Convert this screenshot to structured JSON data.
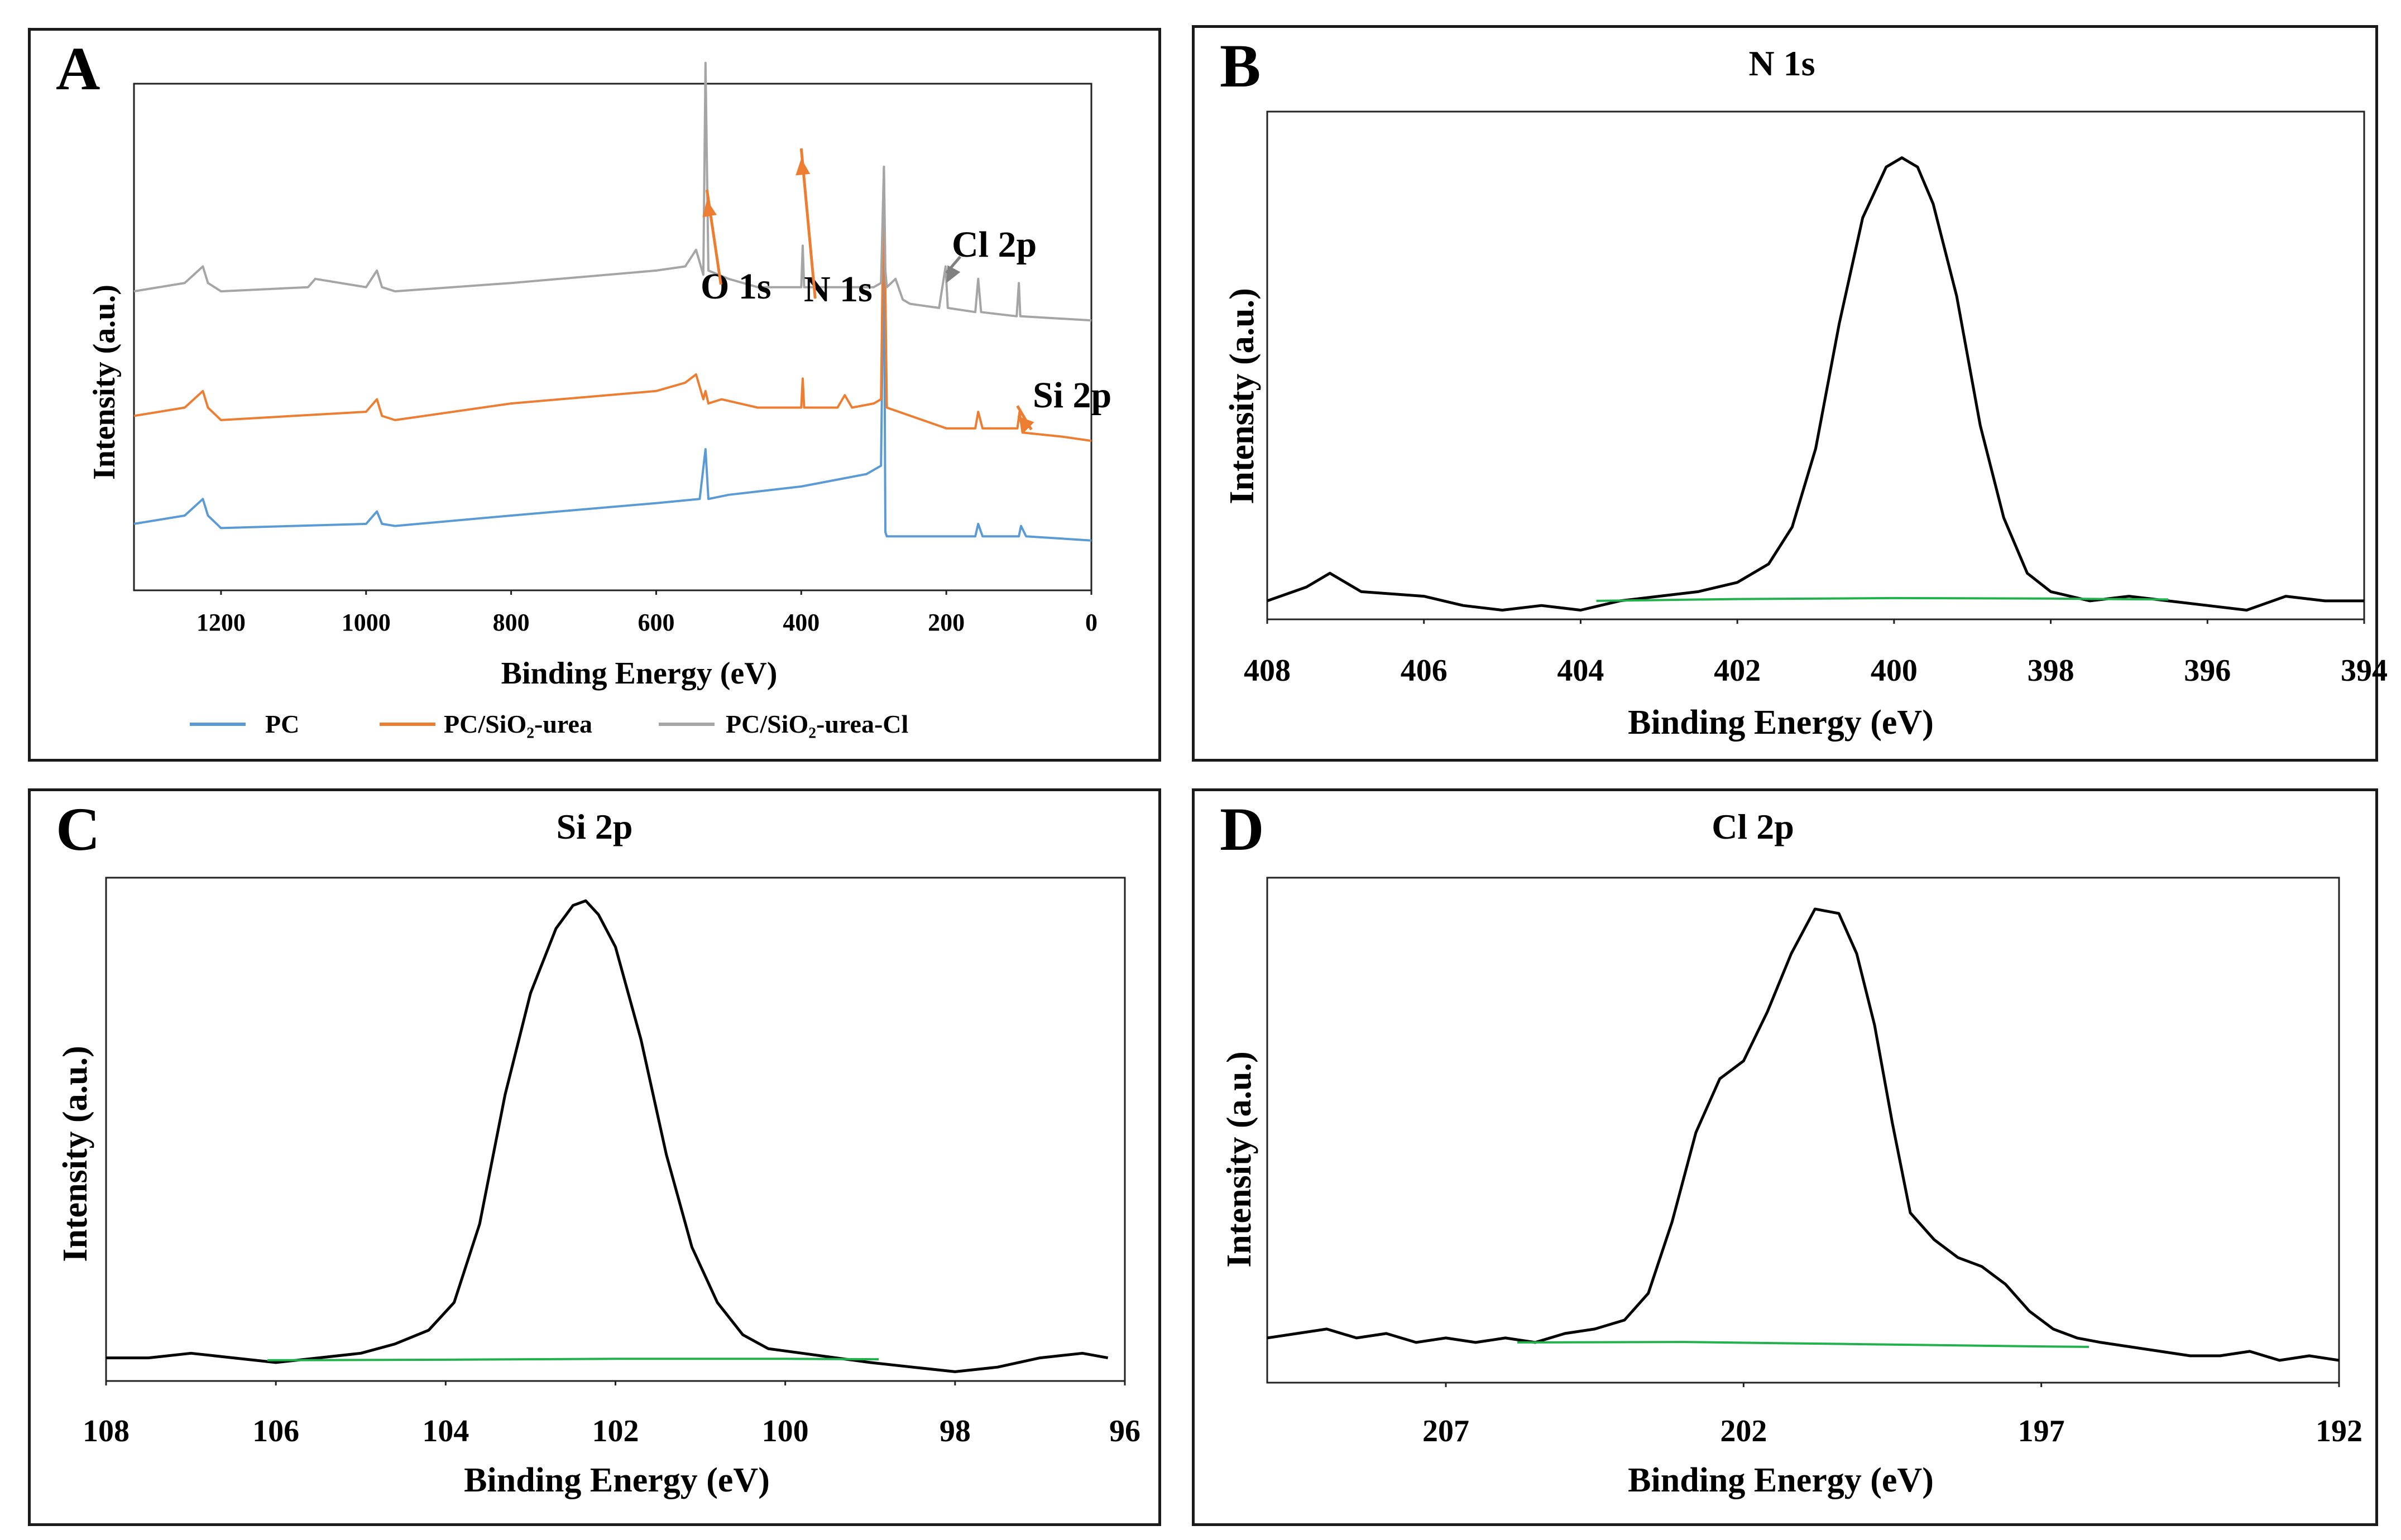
{
  "chart_data": [
    {
      "panel": "A",
      "type": "line",
      "title": "",
      "xlabel": "Binding Energy (eV)",
      "ylabel": "Intensity (a.u.)",
      "xlim": [
        1320,
        0
      ],
      "x_ticks": [
        1200,
        1000,
        800,
        600,
        400,
        200,
        0
      ],
      "y_ticks": [],
      "grid": false,
      "legend_position": "bottom",
      "annotations": [
        {
          "text": "O 1s",
          "x": 530,
          "color": "#ED7D31"
        },
        {
          "text": "N 1s",
          "x": 400,
          "color": "#ED7D31"
        },
        {
          "text": "Cl 2p",
          "x": 200,
          "color": "#808080"
        },
        {
          "text": "Si  2p",
          "x": 102,
          "color": "#ED7D31"
        }
      ],
      "series": [
        {
          "name": "PC",
          "color": "#5B9BD5",
          "offset": 0,
          "x": [
            1320,
            1250,
            1225,
            1218,
            1200,
            1100,
            1000,
            985,
            978,
            960,
            800,
            600,
            540,
            532,
            528,
            500,
            400,
            310,
            290,
            286,
            284,
            282,
            200,
            160,
            156,
            150,
            100,
            97,
            90,
            0
          ],
          "y": [
            4,
            6,
            10,
            6,
            3,
            3.5,
            4,
            7,
            4,
            3.5,
            6,
            9,
            10,
            22,
            10,
            11,
            13,
            16,
            18,
            75,
            2,
            1,
            1,
            1,
            4,
            1,
            1,
            3.5,
            1,
            0
          ]
        },
        {
          "name": "PC/SiO₂-urea",
          "color": "#ED7D31",
          "offset": 30,
          "x": [
            1320,
            1250,
            1225,
            1218,
            1200,
            1100,
            1000,
            985,
            978,
            960,
            800,
            600,
            560,
            545,
            535,
            532,
            528,
            510,
            460,
            400,
            398,
            396,
            350,
            340,
            330,
            300,
            290,
            286,
            284,
            282,
            200,
            160,
            156,
            150,
            102,
            99,
            95,
            40,
            0
          ],
          "y": [
            0,
            2,
            6,
            2,
            -1,
            0,
            1,
            4,
            0,
            -1,
            3,
            6,
            8,
            10,
            4,
            6,
            3,
            4,
            2,
            2,
            9,
            2,
            2,
            5,
            2,
            3,
            4,
            60,
            30,
            2,
            -3,
            -3,
            1,
            -3,
            -3,
            1,
            -4,
            -5,
            -6
          ]
        },
        {
          "name": "PC/SiO₂-urea-Cl",
          "color": "#A5A5A5",
          "offset": 60,
          "x": [
            1320,
            1250,
            1225,
            1218,
            1200,
            1080,
            1070,
            1000,
            985,
            978,
            960,
            800,
            600,
            560,
            545,
            535,
            532,
            528,
            500,
            460,
            400,
            398,
            396,
            300,
            290,
            286,
            284,
            282,
            270,
            260,
            250,
            210,
            201,
            198,
            160,
            156,
            152,
            103,
            100,
            98,
            0
          ],
          "y": [
            0,
            2,
            6,
            2,
            0,
            1,
            3,
            1,
            5,
            1,
            0,
            2,
            5,
            6,
            10,
            4,
            55,
            5,
            3,
            1,
            1,
            11,
            1,
            1,
            2,
            30,
            5,
            1,
            3,
            -2,
            -3,
            -4,
            6,
            -4,
            -5,
            3,
            -5,
            -6,
            2,
            -6,
            -7
          ]
        }
      ],
      "legend": [
        {
          "label": "PC",
          "color": "#5B9BD5"
        },
        {
          "label": "PC/SiO₂-urea",
          "color": "#ED7D31"
        },
        {
          "label": "PC/SiO₂-urea-Cl",
          "color": "#A5A5A5"
        }
      ]
    },
    {
      "panel": "B",
      "type": "line",
      "title": "N 1s",
      "xlabel": "Binding Energy (eV)",
      "ylabel": "Intensity (a.u.)",
      "xlim": [
        408,
        394
      ],
      "x_ticks": [
        408,
        406,
        404,
        402,
        400,
        398,
        396,
        394
      ],
      "grid": false,
      "series": [
        {
          "name": "N 1s spectrum",
          "color": "#000000",
          "x": [
            408,
            407.5,
            407.2,
            406.8,
            406,
            405.5,
            405,
            404.5,
            404,
            403.5,
            403,
            402.5,
            402,
            401.6,
            401.3,
            401,
            400.7,
            400.4,
            400.1,
            399.9,
            399.7,
            399.5,
            399.2,
            398.9,
            398.6,
            398.3,
            398,
            397.5,
            397,
            396.5,
            396,
            395.5,
            395,
            394.5,
            394
          ],
          "y": [
            2,
            5,
            8,
            4,
            3,
            1,
            0,
            1,
            0,
            2,
            3,
            4,
            6,
            10,
            18,
            35,
            62,
            85,
            96,
            98,
            96,
            88,
            68,
            40,
            20,
            8,
            4,
            2,
            3,
            2,
            1,
            0,
            3,
            2,
            2
          ]
        },
        {
          "name": "N 1s background",
          "color": "#23b14d",
          "x": [
            403.8,
            402,
            400,
            398,
            396.5
          ],
          "y": [
            2,
            2.4,
            2.6,
            2.5,
            2.3
          ]
        }
      ]
    },
    {
      "panel": "C",
      "type": "line",
      "title": "Si 2p",
      "xlabel": "Binding Energy (eV)",
      "ylabel": "Intensity (a.u.)",
      "xlim": [
        108,
        96
      ],
      "x_ticks": [
        108,
        106,
        104,
        102,
        100,
        98,
        96
      ],
      "grid": false,
      "series": [
        {
          "name": "Si 2p spectrum",
          "color": "#000000",
          "x": [
            108,
            107.5,
            107,
            106.5,
            106,
            105.5,
            105,
            104.6,
            104.2,
            103.9,
            103.6,
            103.3,
            103,
            102.7,
            102.5,
            102.35,
            102.2,
            102,
            101.7,
            101.4,
            101.1,
            100.8,
            100.5,
            100.2,
            99.8,
            99.4,
            99,
            98.5,
            98,
            97.5,
            97,
            96.5,
            96.2
          ],
          "y": [
            1,
            1,
            2,
            1,
            0,
            1,
            2,
            4,
            7,
            13,
            30,
            58,
            80,
            94,
            99,
            100,
            97,
            90,
            70,
            45,
            25,
            13,
            6,
            3,
            2,
            1,
            0,
            -1,
            -2,
            -1,
            1,
            2,
            1
          ]
        },
        {
          "name": "Si 2p background",
          "color": "#23b14d",
          "x": [
            106.1,
            104,
            102,
            100,
            98.9
          ],
          "y": [
            0.5,
            0.6,
            0.8,
            0.8,
            0.7
          ]
        }
      ]
    },
    {
      "panel": "D",
      "type": "line",
      "title": "Cl 2p",
      "xlabel": "Binding Energy (eV)",
      "ylabel": "Intensity (a.u.)",
      "xlim": [
        210,
        192
      ],
      "x_ticks": [
        207,
        202,
        197,
        192
      ],
      "grid": false,
      "series": [
        {
          "name": "Cl 2p spectrum",
          "color": "#000000",
          "x": [
            210,
            209.5,
            209,
            208.5,
            208,
            207.5,
            207,
            206.5,
            206,
            205.5,
            205,
            204.5,
            204,
            203.6,
            203.2,
            202.8,
            202.4,
            202,
            201.6,
            201.2,
            200.8,
            200.4,
            200.1,
            199.8,
            199.5,
            199.2,
            198.8,
            198.4,
            198,
            197.6,
            197.2,
            196.8,
            196.4,
            196,
            195.5,
            195,
            194.5,
            194,
            193.5,
            193,
            192.5,
            192
          ],
          "y": [
            2,
            3,
            4,
            2,
            3,
            1,
            2,
            1,
            2,
            1,
            3,
            4,
            6,
            12,
            28,
            48,
            60,
            64,
            75,
            88,
            98,
            97,
            88,
            72,
            50,
            30,
            24,
            20,
            18,
            14,
            8,
            4,
            2,
            1,
            0,
            -1,
            -2,
            -2,
            -1,
            -3,
            -2,
            -3
          ]
        },
        {
          "name": "Cl 2p background",
          "color": "#23b14d",
          "x": [
            205.8,
            203,
            200,
            197,
            196.2
          ],
          "y": [
            1,
            1.1,
            0.6,
            0.1,
            0
          ]
        }
      ]
    }
  ]
}
